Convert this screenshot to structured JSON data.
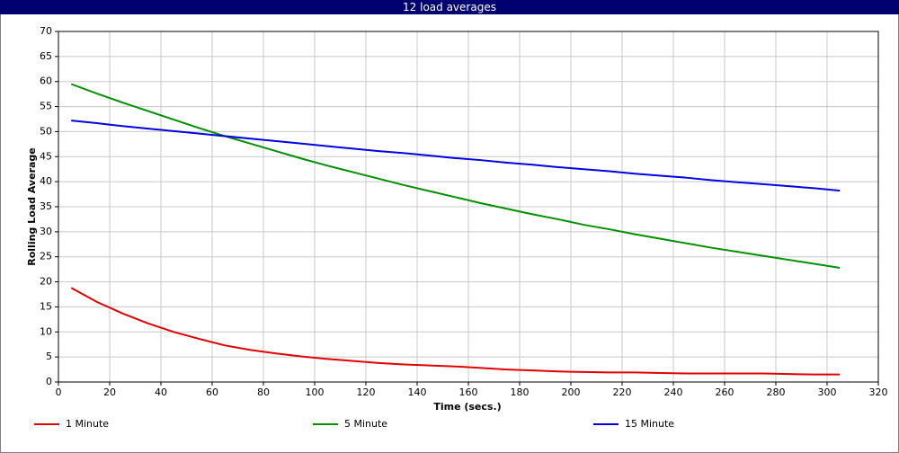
{
  "chart_data": {
    "type": "line",
    "title": "12 load averages",
    "x_label": "Time (secs.)",
    "y_label": "Rolling Load Average",
    "x": [
      5,
      15,
      25,
      35,
      45,
      55,
      65,
      75,
      85,
      95,
      105,
      115,
      125,
      135,
      145,
      155,
      165,
      175,
      185,
      195,
      205,
      215,
      225,
      235,
      245,
      255,
      265,
      275,
      285,
      295,
      305
    ],
    "series": [
      {
        "name": "1 Minute",
        "color": "#e00000",
        "values": [
          18.8,
          16,
          13.7,
          11.7,
          10,
          8.6,
          7.3,
          6.4,
          5.7,
          5.1,
          4.6,
          4.2,
          3.8,
          3.5,
          3.3,
          3.1,
          2.8,
          2.5,
          2.3,
          2.1,
          2.0,
          1.9,
          1.9,
          1.8,
          1.7,
          1.7,
          1.7,
          1.7,
          1.6,
          1.5,
          1.5
        ]
      },
      {
        "name": "5 Minute",
        "color": "#009000",
        "values": [
          59.5,
          57.6,
          55.8,
          54.1,
          52.4,
          50.7,
          49.1,
          47.6,
          46.1,
          44.6,
          43.2,
          41.9,
          40.6,
          39.3,
          38.1,
          36.9,
          35.7,
          34.6,
          33.5,
          32.5,
          31.4,
          30.5,
          29.5,
          28.6,
          27.7,
          26.8,
          26.0,
          25.2,
          24.4,
          23.6,
          22.8
        ]
      },
      {
        "name": "15 Minute",
        "color": "#0000e0",
        "values": [
          52.2,
          51.7,
          51.1,
          50.6,
          50.1,
          49.6,
          49.1,
          48.6,
          48.1,
          47.6,
          47.1,
          46.6,
          46.1,
          45.7,
          45.2,
          44.7,
          44.3,
          43.8,
          43.4,
          42.9,
          42.5,
          42.1,
          41.6,
          41.2,
          40.8,
          40.3,
          39.9,
          39.5,
          39.1,
          38.7,
          38.2
        ]
      }
    ],
    "xlim": [
      0,
      320
    ],
    "xticks": [
      0,
      20,
      40,
      60,
      80,
      100,
      120,
      140,
      160,
      180,
      200,
      220,
      240,
      260,
      280,
      300,
      320
    ],
    "ylim": [
      0,
      70
    ],
    "yticks": [
      0,
      5,
      10,
      15,
      20,
      25,
      30,
      35,
      40,
      45,
      50,
      55,
      60,
      65,
      70
    ],
    "grid": true,
    "legend": "bottom"
  }
}
